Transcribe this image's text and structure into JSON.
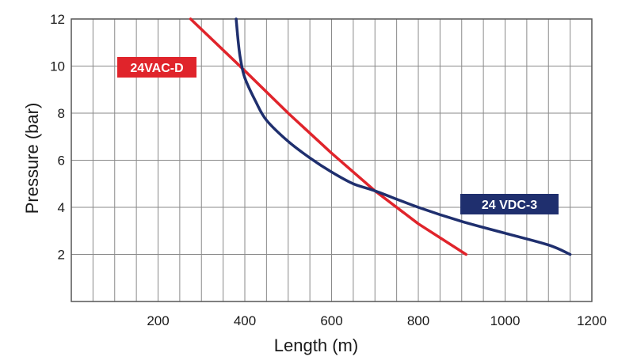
{
  "chart_data": {
    "type": "line",
    "xlabel": "Length (m)",
    "ylabel": "Pressure (bar)",
    "xlim": [
      0,
      1200
    ],
    "ylim": [
      0,
      12
    ],
    "x_ticks": [
      200,
      400,
      600,
      800,
      1000,
      1200
    ],
    "y_ticks": [
      2,
      4,
      6,
      8,
      10,
      12
    ],
    "grid": true,
    "series": [
      {
        "name": "24VAC-D",
        "color": "#e0242b",
        "label_bg": "#e0242b",
        "x": [
          275,
          400,
          500,
          600,
          700,
          800,
          910
        ],
        "y": [
          12,
          9.8,
          8.0,
          6.3,
          4.7,
          3.3,
          2.0
        ]
      },
      {
        "name": "24 VDC-3",
        "color": "#1f2f6e",
        "label_bg": "#1f2f6e",
        "x": [
          380,
          385,
          390,
          400,
          425,
          450,
          500,
          550,
          600,
          650,
          700,
          800,
          900,
          1000,
          1100,
          1150
        ],
        "y": [
          12,
          11.0,
          10.3,
          9.5,
          8.5,
          7.7,
          6.8,
          6.1,
          5.5,
          5.0,
          4.7,
          4.0,
          3.4,
          2.9,
          2.4,
          2.0
        ]
      }
    ]
  }
}
